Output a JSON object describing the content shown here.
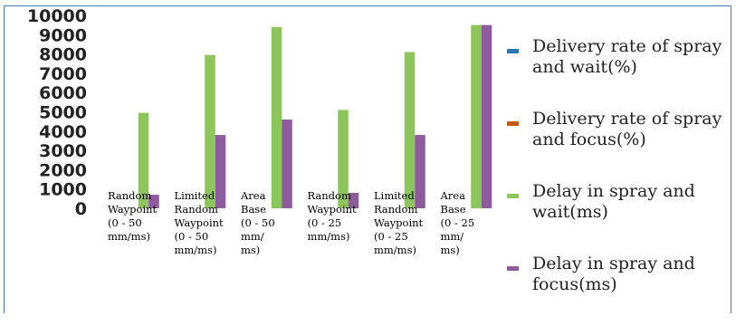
{
  "chart_data": {
    "type": "bar",
    "categories": [
      [
        "Random",
        "Waypoint",
        "(0 - 50",
        "mm/ms)"
      ],
      [
        "Limited",
        "Random",
        "Waypoint",
        "(0 - 50",
        "mm/ms)"
      ],
      [
        "Area",
        "Base",
        "(0 - 50",
        "mm/",
        "ms)"
      ],
      [
        "Random",
        "Waypoint",
        "(0 - 25",
        "mm/ms)"
      ],
      [
        "Limited",
        "Random",
        "Waypoint",
        "(0 - 25",
        "mm/ms)"
      ],
      [
        "Area",
        "Base",
        "(0 - 25",
        "mm/",
        "ms)"
      ]
    ],
    "series": [
      {
        "name": "Delivery rate of spray and wait(%)",
        "color": "#2e75b6",
        "values": [
          0,
          0,
          0,
          0,
          0,
          0
        ]
      },
      {
        "name": "Delivery rate of spray and focus(%)",
        "color": "#c55a11",
        "values": [
          0,
          0,
          0,
          0,
          0,
          0
        ]
      },
      {
        "name": "Delay in spray and wait(ms)",
        "color": "#8cc65a",
        "values": [
          4950,
          7950,
          9400,
          5100,
          8100,
          9500
        ]
      },
      {
        "name": "Delay in spray and focus(ms)",
        "color": "#8e5b9e",
        "values": [
          700,
          3800,
          4600,
          800,
          3800,
          9500
        ]
      }
    ],
    "yticks": [
      "10000",
      "9000",
      "8000",
      "7000",
      "6000",
      "5000",
      "4000",
      "3000",
      "2000",
      "1000",
      "0"
    ],
    "ylim": [
      0,
      10000
    ],
    "grid": false,
    "legend_position": "right"
  }
}
